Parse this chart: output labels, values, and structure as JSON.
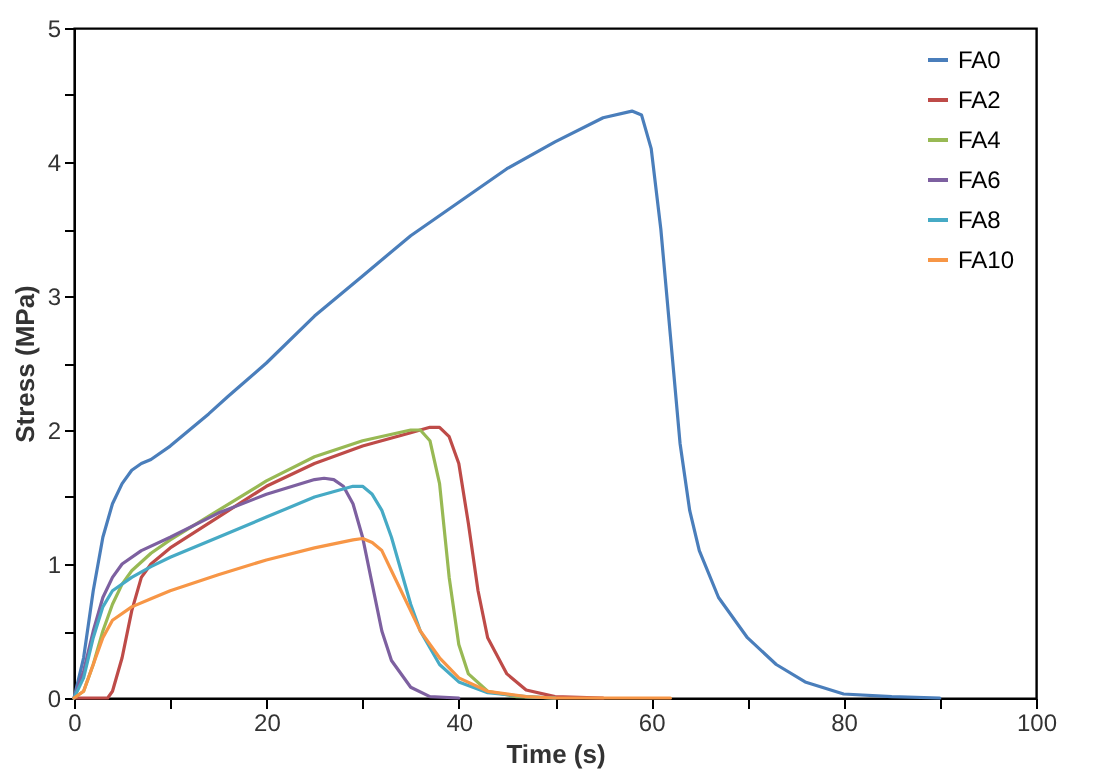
{
  "chart_data": {
    "type": "line",
    "xlabel": "Time (s)",
    "ylabel": "Stress (MPa)",
    "xlim": [
      0,
      100
    ],
    "xticks": [
      0,
      {
        "value": 10,
        "label": null
      },
      20,
      {
        "value": 30,
        "label": null
      },
      40,
      {
        "value": 50,
        "label": null
      },
      60,
      {
        "value": 70,
        "label": null
      },
      80,
      {
        "value": 90,
        "label": null
      },
      100
    ],
    "ylim": [
      0,
      5
    ],
    "yticks": [
      0,
      {
        "value": 0.5,
        "label": null
      },
      1,
      {
        "value": 1.5,
        "label": null
      },
      2,
      {
        "value": 2.5,
        "label": null
      },
      3,
      {
        "value": 3.5,
        "label": null
      },
      4,
      {
        "value": 4.5,
        "label": null
      },
      5
    ],
    "grid": false,
    "legend": "top right",
    "marker": "none",
    "line_style": "solid",
    "series": [
      {
        "name": "FA0",
        "color": "#4a7ebb",
        "x": [
          0,
          1,
          2,
          3,
          4,
          5,
          6,
          7,
          8,
          10,
          12,
          14,
          16,
          20,
          25,
          30,
          35,
          40,
          45,
          50,
          55,
          58,
          59,
          60,
          61,
          62,
          63,
          64,
          65,
          67,
          70,
          73,
          76,
          80,
          85,
          90
        ],
        "values": [
          0,
          0.3,
          0.8,
          1.2,
          1.45,
          1.6,
          1.7,
          1.75,
          1.78,
          1.88,
          2.0,
          2.12,
          2.25,
          2.5,
          2.85,
          3.15,
          3.45,
          3.7,
          3.95,
          4.15,
          4.33,
          4.38,
          4.35,
          4.1,
          3.5,
          2.7,
          1.9,
          1.4,
          1.1,
          0.75,
          0.45,
          0.25,
          0.12,
          0.03,
          0.01,
          0
        ]
      },
      {
        "name": "FA2",
        "color": "#be4b48",
        "x": [
          0,
          3.5,
          4,
          5,
          6,
          7,
          8,
          10,
          15,
          20,
          25,
          30,
          35,
          37,
          38,
          39,
          40,
          41,
          42,
          43,
          45,
          47,
          50,
          55
        ],
        "values": [
          0,
          0,
          0.05,
          0.3,
          0.65,
          0.9,
          1.0,
          1.12,
          1.35,
          1.58,
          1.75,
          1.88,
          1.98,
          2.02,
          2.02,
          1.95,
          1.75,
          1.3,
          0.8,
          0.45,
          0.18,
          0.06,
          0.01,
          0
        ]
      },
      {
        "name": "FA4",
        "color": "#98b954",
        "x": [
          0,
          1,
          2,
          3,
          4,
          5,
          6,
          8,
          10,
          15,
          20,
          25,
          30,
          35,
          36,
          37,
          38,
          39,
          40,
          41,
          43,
          46,
          50
        ],
        "values": [
          0,
          0.05,
          0.25,
          0.5,
          0.7,
          0.85,
          0.95,
          1.08,
          1.18,
          1.4,
          1.62,
          1.8,
          1.92,
          2.0,
          2.0,
          1.92,
          1.6,
          0.9,
          0.4,
          0.18,
          0.05,
          0.01,
          0
        ]
      },
      {
        "name": "FA6",
        "color": "#7d60a0",
        "x": [
          0,
          1,
          2,
          3,
          4,
          5,
          7,
          10,
          15,
          20,
          25,
          26,
          27,
          28,
          29,
          30,
          31,
          32,
          33,
          35,
          37,
          40
        ],
        "values": [
          0,
          0.2,
          0.5,
          0.75,
          0.9,
          1.0,
          1.1,
          1.2,
          1.38,
          1.52,
          1.63,
          1.64,
          1.63,
          1.58,
          1.45,
          1.2,
          0.85,
          0.5,
          0.28,
          0.08,
          0.01,
          0
        ]
      },
      {
        "name": "FA8",
        "color": "#46aac5",
        "x": [
          0,
          1,
          2,
          3,
          4,
          6,
          8,
          10,
          15,
          20,
          25,
          29,
          30,
          31,
          32,
          33,
          34,
          35,
          36,
          38,
          40,
          43,
          47,
          50
        ],
        "values": [
          0,
          0.15,
          0.45,
          0.68,
          0.8,
          0.9,
          0.98,
          1.05,
          1.2,
          1.35,
          1.5,
          1.58,
          1.58,
          1.52,
          1.4,
          1.2,
          0.95,
          0.7,
          0.5,
          0.25,
          0.12,
          0.04,
          0.01,
          0
        ]
      },
      {
        "name": "FA10",
        "color": "#f79646",
        "x": [
          0,
          1,
          2,
          3,
          4,
          6,
          8,
          10,
          15,
          20,
          25,
          29,
          30,
          31,
          32,
          33,
          34,
          35,
          36,
          38,
          40,
          43,
          47,
          50,
          62
        ],
        "values": [
          0,
          0.05,
          0.25,
          0.45,
          0.58,
          0.68,
          0.74,
          0.8,
          0.92,
          1.03,
          1.12,
          1.18,
          1.19,
          1.16,
          1.1,
          0.95,
          0.8,
          0.65,
          0.5,
          0.3,
          0.15,
          0.05,
          0.01,
          0,
          0
        ]
      }
    ]
  }
}
